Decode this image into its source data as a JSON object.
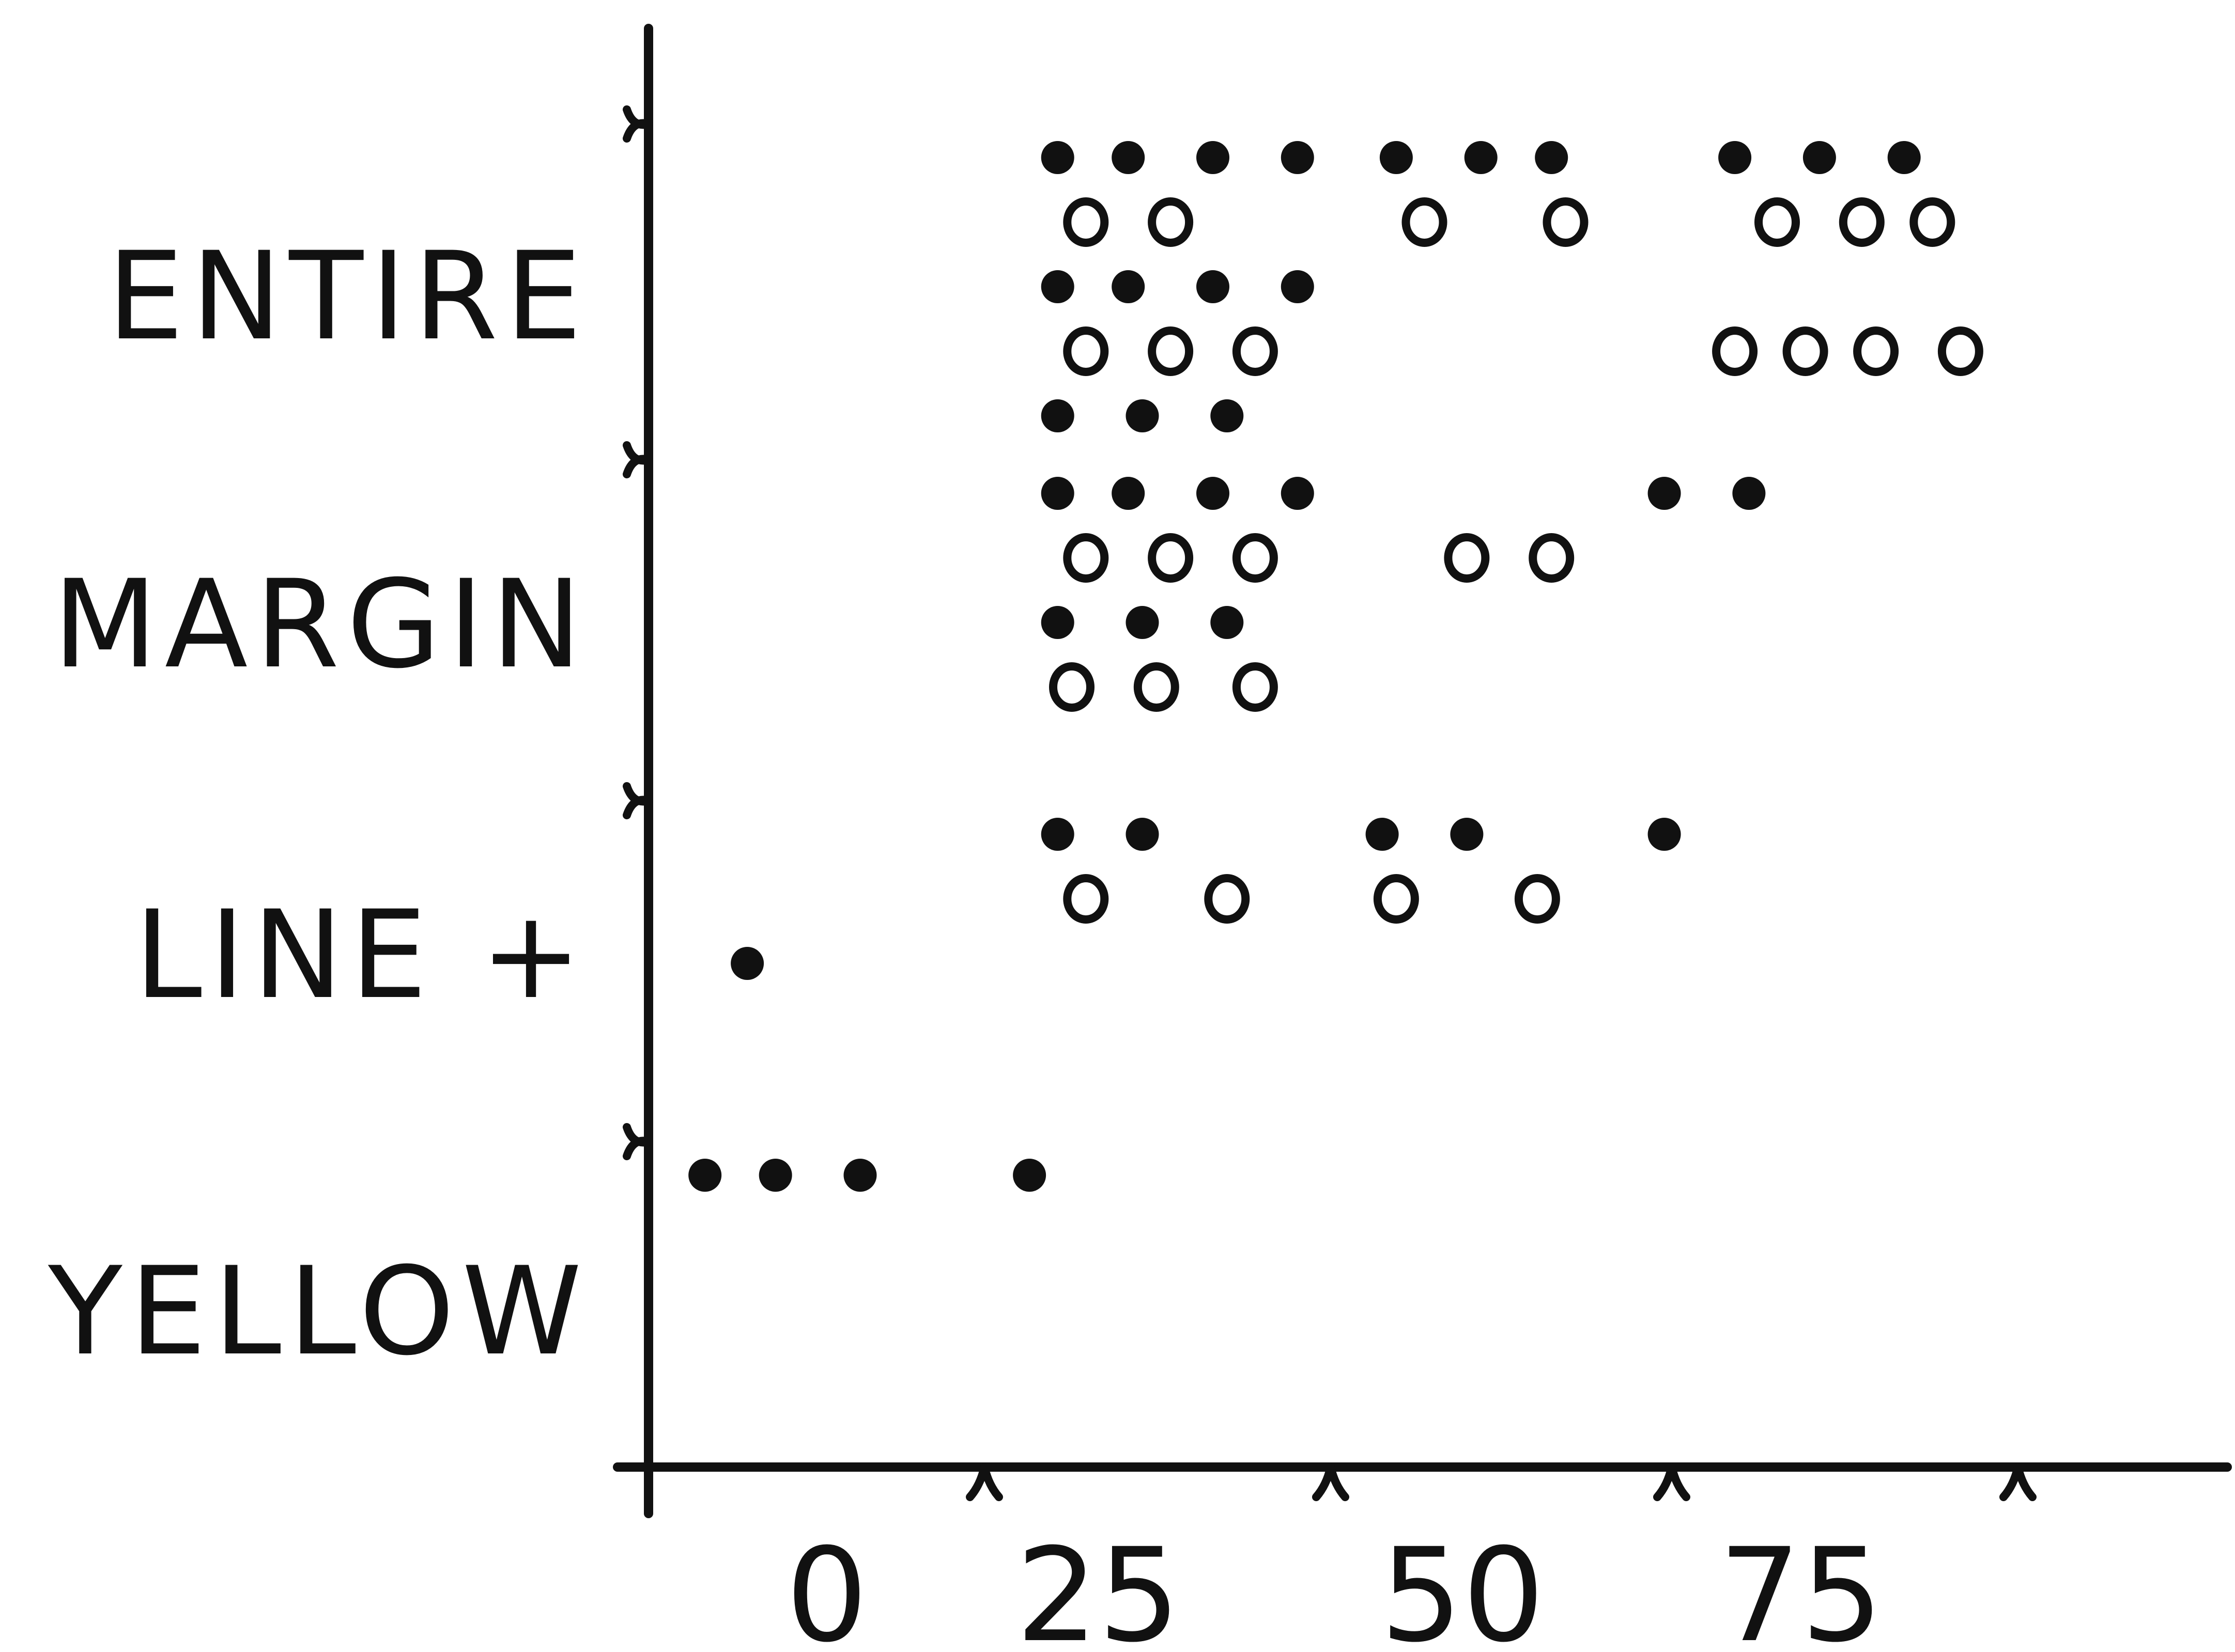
{
  "chart_data": {
    "type": "scatter",
    "title": "",
    "xlabel": "",
    "ylabel": "",
    "x_ticks": [
      0,
      25,
      50,
      75
    ],
    "xlim": [
      -1,
      113
    ],
    "categories": [
      "ENTIRE",
      "MARGIN",
      "LINE +",
      "YELLOW"
    ],
    "marker_legend": {
      "filled": "filled circle",
      "open": "open circle"
    },
    "series": [
      {
        "marker": "filled",
        "points": [
          {
            "category": "ENTIRE",
            "row": 0,
            "x": 28
          },
          {
            "category": "ENTIRE",
            "row": 0,
            "x": 33
          },
          {
            "category": "ENTIRE",
            "row": 0,
            "x": 39
          },
          {
            "category": "ENTIRE",
            "row": 0,
            "x": 45
          },
          {
            "category": "ENTIRE",
            "row": 0,
            "x": 52
          },
          {
            "category": "ENTIRE",
            "row": 0,
            "x": 58
          },
          {
            "category": "ENTIRE",
            "row": 0,
            "x": 63
          },
          {
            "category": "ENTIRE",
            "row": 0,
            "x": 76
          },
          {
            "category": "ENTIRE",
            "row": 0,
            "x": 82
          },
          {
            "category": "ENTIRE",
            "row": 0,
            "x": 88
          },
          {
            "category": "ENTIRE",
            "row": 2,
            "x": 28
          },
          {
            "category": "ENTIRE",
            "row": 2,
            "x": 33
          },
          {
            "category": "ENTIRE",
            "row": 2,
            "x": 39
          },
          {
            "category": "ENTIRE",
            "row": 2,
            "x": 45
          },
          {
            "category": "ENTIRE",
            "row": 4,
            "x": 28
          },
          {
            "category": "ENTIRE",
            "row": 4,
            "x": 34
          },
          {
            "category": "ENTIRE",
            "row": 4,
            "x": 40
          },
          {
            "category": "MARGIN",
            "row": 0,
            "x": 28
          },
          {
            "category": "MARGIN",
            "row": 0,
            "x": 33
          },
          {
            "category": "MARGIN",
            "row": 0,
            "x": 39
          },
          {
            "category": "MARGIN",
            "row": 0,
            "x": 45
          },
          {
            "category": "MARGIN",
            "row": 0,
            "x": 71
          },
          {
            "category": "MARGIN",
            "row": 0,
            "x": 77
          },
          {
            "category": "MARGIN",
            "row": 2,
            "x": 28
          },
          {
            "category": "MARGIN",
            "row": 2,
            "x": 34
          },
          {
            "category": "MARGIN",
            "row": 2,
            "x": 40
          },
          {
            "category": "LINE +",
            "row": 0,
            "x": 28
          },
          {
            "category": "LINE +",
            "row": 0,
            "x": 34
          },
          {
            "category": "LINE +",
            "row": 0,
            "x": 51
          },
          {
            "category": "LINE +",
            "row": 0,
            "x": 57
          },
          {
            "category": "LINE +",
            "row": 0,
            "x": 71
          },
          {
            "category": "LINE +",
            "row": 2,
            "x": 6
          },
          {
            "category": "YELLOW",
            "row": 0,
            "x": 3
          },
          {
            "category": "YELLOW",
            "row": 0,
            "x": 8
          },
          {
            "category": "YELLOW",
            "row": 0,
            "x": 14
          },
          {
            "category": "YELLOW",
            "row": 0,
            "x": 26
          }
        ]
      },
      {
        "marker": "open",
        "points": [
          {
            "category": "ENTIRE",
            "row": 1,
            "x": 30
          },
          {
            "category": "ENTIRE",
            "row": 1,
            "x": 36
          },
          {
            "category": "ENTIRE",
            "row": 1,
            "x": 54
          },
          {
            "category": "ENTIRE",
            "row": 1,
            "x": 64
          },
          {
            "category": "ENTIRE",
            "row": 1,
            "x": 79
          },
          {
            "category": "ENTIRE",
            "row": 1,
            "x": 85
          },
          {
            "category": "ENTIRE",
            "row": 1,
            "x": 90
          },
          {
            "category": "ENTIRE",
            "row": 3,
            "x": 30
          },
          {
            "category": "ENTIRE",
            "row": 3,
            "x": 36
          },
          {
            "category": "ENTIRE",
            "row": 3,
            "x": 42
          },
          {
            "category": "ENTIRE",
            "row": 3,
            "x": 76
          },
          {
            "category": "ENTIRE",
            "row": 3,
            "x": 81
          },
          {
            "category": "ENTIRE",
            "row": 3,
            "x": 86
          },
          {
            "category": "ENTIRE",
            "row": 3,
            "x": 92
          },
          {
            "category": "MARGIN",
            "row": 1,
            "x": 30
          },
          {
            "category": "MARGIN",
            "row": 1,
            "x": 36
          },
          {
            "category": "MARGIN",
            "row": 1,
            "x": 42
          },
          {
            "category": "MARGIN",
            "row": 1,
            "x": 57
          },
          {
            "category": "MARGIN",
            "row": 1,
            "x": 63
          },
          {
            "category": "MARGIN",
            "row": 3,
            "x": 29
          },
          {
            "category": "MARGIN",
            "row": 3,
            "x": 35
          },
          {
            "category": "MARGIN",
            "row": 3,
            "x": 42
          },
          {
            "category": "LINE +",
            "row": 1,
            "x": 30
          },
          {
            "category": "LINE +",
            "row": 1,
            "x": 40
          },
          {
            "category": "LINE +",
            "row": 1,
            "x": 52
          },
          {
            "category": "LINE +",
            "row": 1,
            "x": 62
          }
        ]
      }
    ]
  }
}
